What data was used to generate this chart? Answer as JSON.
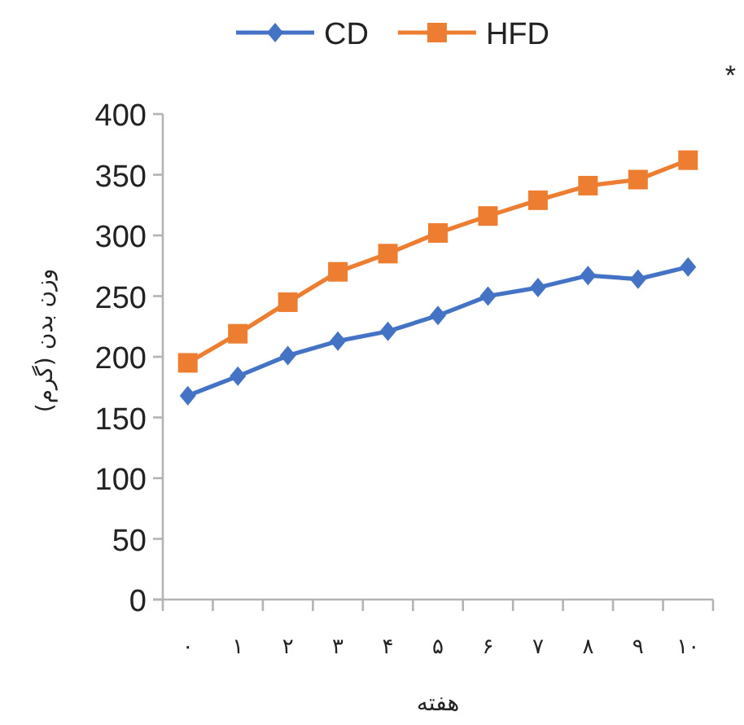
{
  "chart_data": {
    "type": "line",
    "categories": [
      "۰",
      "۱",
      "۲",
      "۳",
      "۴",
      "۵",
      "۶",
      "۷",
      "۸",
      "۹",
      "۱۰"
    ],
    "series": [
      {
        "name": "CD",
        "color": "#4472c4",
        "marker": "diamond",
        "values": [
          168,
          184,
          201,
          213,
          221,
          234,
          250,
          257,
          267,
          264,
          274
        ]
      },
      {
        "name": "HFD",
        "color": "#ed7d31",
        "marker": "square",
        "values": [
          195,
          219,
          245,
          270,
          285,
          302,
          316,
          329,
          341,
          346,
          362
        ]
      }
    ],
    "xlabel": "هفته",
    "ylabel": "وزن بدن (گرم)",
    "ylim": [
      0,
      400
    ],
    "yticks": [
      0,
      50,
      100,
      150,
      200,
      250,
      300,
      350,
      400
    ],
    "annotations": [
      "*"
    ],
    "legend": "top",
    "grid": false
  }
}
